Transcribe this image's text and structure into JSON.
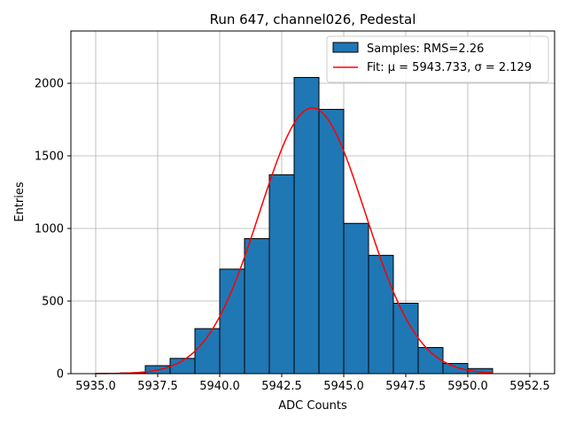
{
  "chart_data": {
    "type": "bar",
    "title": "Run 647, channel026, Pedestal",
    "xlabel": "ADC Counts",
    "ylabel": "Entries",
    "xlim": [
      5934.0,
      5953.5
    ],
    "ylim": [
      0,
      2360
    ],
    "xticks": [
      5935.0,
      5937.5,
      5940.0,
      5942.5,
      5945.0,
      5947.5,
      5950.0,
      5952.5
    ],
    "xtick_labels": [
      "5935.0",
      "5937.5",
      "5940.0",
      "5942.5",
      "5945.0",
      "5947.5",
      "5950.0",
      "5952.5"
    ],
    "yticks": [
      0,
      500,
      1000,
      1500,
      2000
    ],
    "ytick_labels": [
      "0",
      "500",
      "1000",
      "1500",
      "2000"
    ],
    "grid": true,
    "legend_position": "top-right",
    "bar_color": "#1f77b4",
    "fit_color": "#ff0000",
    "histogram": {
      "name": "Samples: RMS=2.26",
      "bin_edges": [
        5935.0,
        5936.0,
        5937.0,
        5938.0,
        5939.0,
        5940.0,
        5941.0,
        5942.0,
        5943.0,
        5944.0,
        5945.0,
        5946.0,
        5947.0,
        5948.0,
        5949.0,
        5950.0,
        5951.0
      ],
      "values": [
        2,
        5,
        55,
        105,
        310,
        720,
        930,
        1370,
        2040,
        1820,
        1035,
        815,
        485,
        180,
        70,
        35
      ]
    },
    "fit": {
      "name": "Fit: μ = 5943.733, σ = 2.129",
      "mu": 5943.733,
      "sigma": 2.129,
      "amplitude": 1830,
      "x_range": [
        5935.0,
        5951.0
      ]
    }
  }
}
